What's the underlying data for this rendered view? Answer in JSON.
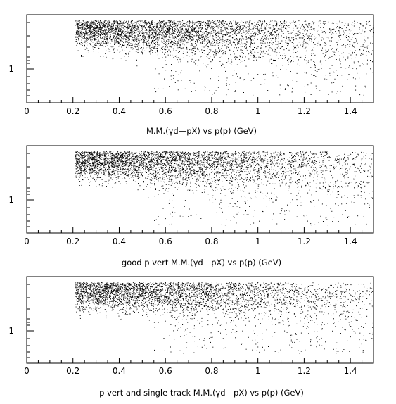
{
  "chart_data": [
    {
      "type": "scatter",
      "title": "M.M.(γd—pX) vs p(p) (GeV)",
      "xlim": [
        0,
        1.5
      ],
      "x_ticks": [
        "0",
        "0.2",
        "0.4",
        "0.6",
        "0.8",
        "1",
        "1.2",
        "1.4"
      ],
      "y_ticks": [
        "1"
      ],
      "grid": false,
      "band": {
        "x_range": [
          0.21,
          1.5
        ],
        "y_center_start": 1.85,
        "y_center_end": 1.78,
        "y_spread": 0.28,
        "density_profile": [
          [
            0.21,
            1.0
          ],
          [
            0.5,
            0.92
          ],
          [
            0.8,
            0.7
          ],
          [
            1.0,
            0.5
          ],
          [
            1.2,
            0.33
          ],
          [
            1.5,
            0.2
          ]
        ],
        "low_tail_y_range": [
          0.55,
          1.45
        ]
      }
    },
    {
      "type": "scatter",
      "title": "good p vert M.M.(γd—pX) vs p(p) (GeV)",
      "xlim": [
        0,
        1.5
      ],
      "x_ticks": [
        "0",
        "0.2",
        "0.4",
        "0.6",
        "0.8",
        "1",
        "1.2",
        "1.4"
      ],
      "y_ticks": [
        "1"
      ],
      "grid": false,
      "band": {
        "x_range": [
          0.21,
          1.5
        ],
        "y_center_start": 1.85,
        "y_center_end": 1.8,
        "y_spread": 0.26,
        "density_profile": [
          [
            0.21,
            1.0
          ],
          [
            0.5,
            0.9
          ],
          [
            0.8,
            0.68
          ],
          [
            1.0,
            0.48
          ],
          [
            1.2,
            0.3
          ],
          [
            1.5,
            0.18
          ]
        ],
        "low_tail_y_range": [
          0.55,
          1.45
        ]
      }
    },
    {
      "type": "scatter",
      "title": "p vert and single track M.M.(γd—pX) vs p(p) (GeV)",
      "xlim": [
        0,
        1.5
      ],
      "x_ticks": [
        "0",
        "0.2",
        "0.4",
        "0.6",
        "0.8",
        "1",
        "1.2",
        "1.4"
      ],
      "y_ticks": [
        "1"
      ],
      "grid": false,
      "band": {
        "x_range": [
          0.21,
          1.5
        ],
        "y_center_start": 1.85,
        "y_center_end": 1.8,
        "y_spread": 0.25,
        "density_profile": [
          [
            0.21,
            0.95
          ],
          [
            0.5,
            0.85
          ],
          [
            0.8,
            0.6
          ],
          [
            1.0,
            0.42
          ],
          [
            1.2,
            0.26
          ],
          [
            1.5,
            0.15
          ]
        ],
        "low_tail_y_range": [
          0.6,
          1.45
        ]
      }
    }
  ]
}
